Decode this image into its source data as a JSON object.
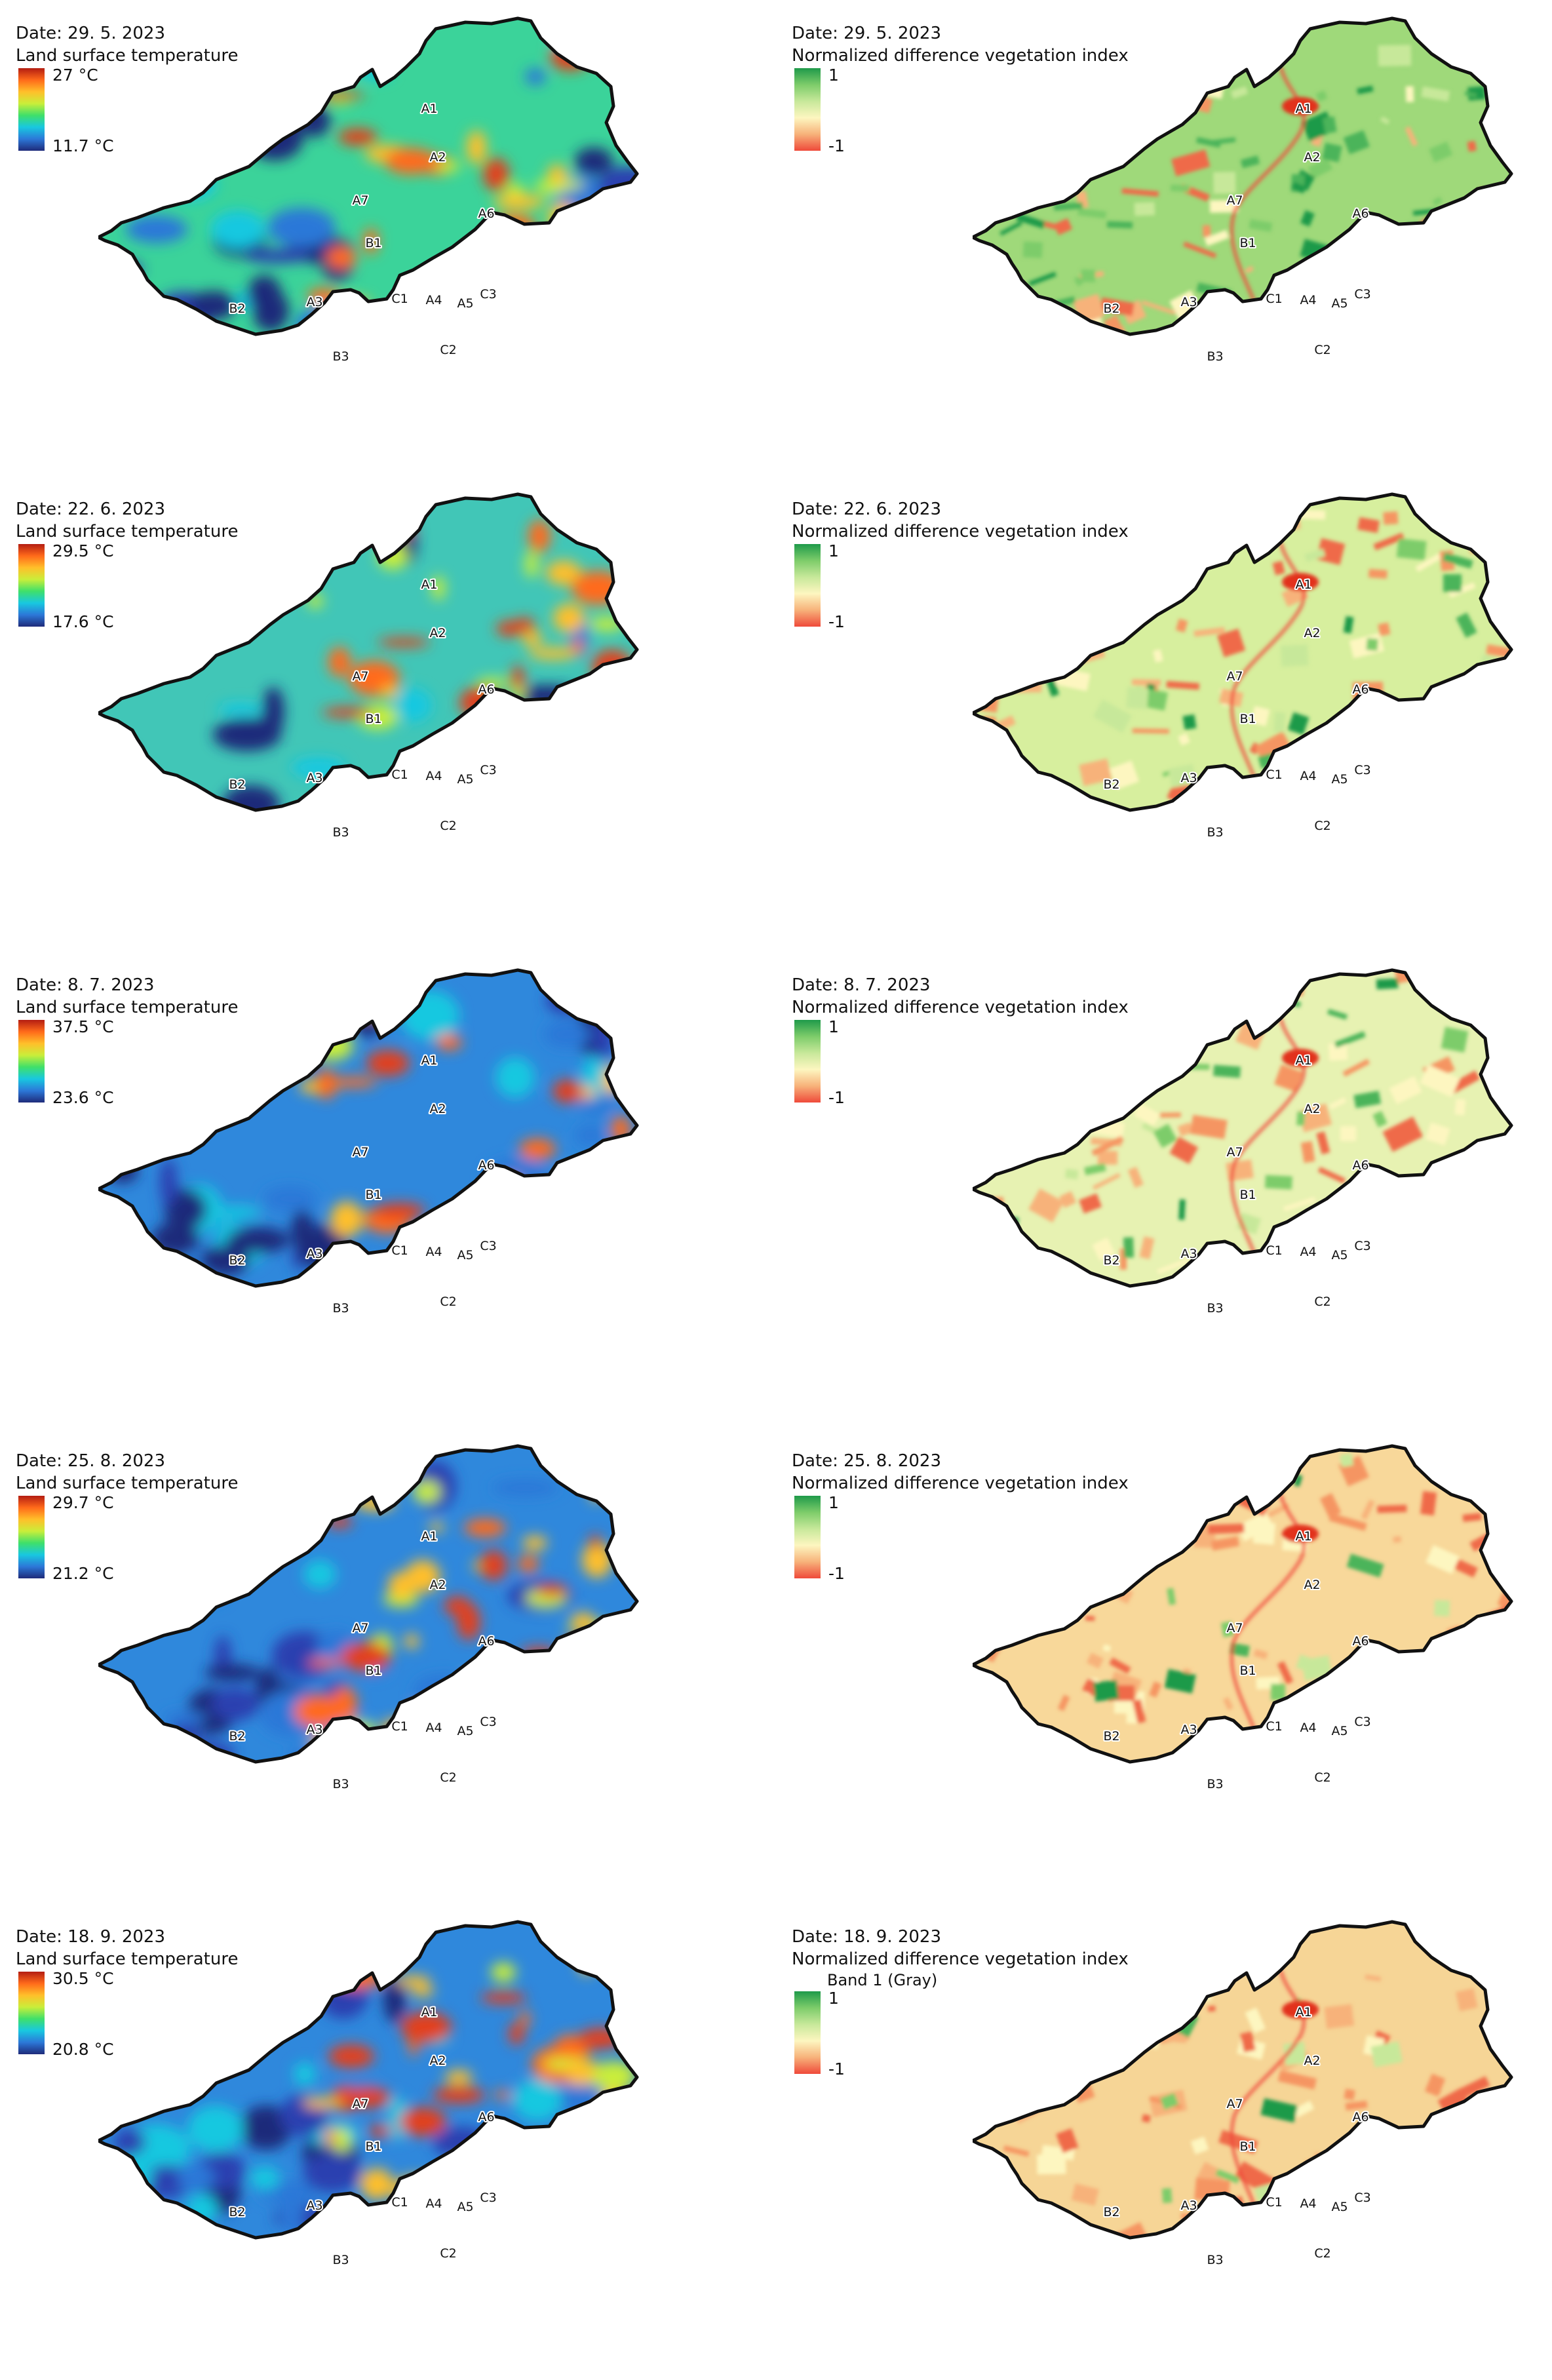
{
  "site_labels": [
    "A1",
    "A2",
    "A7",
    "A6",
    "B1",
    "C1",
    "A4",
    "A5",
    "C3",
    "B2",
    "A3",
    "B3",
    "C2"
  ],
  "palettes": {
    "lst": [
      "#1f2b7a",
      "#2c78d8",
      "#18c8e0",
      "#3fe06a",
      "#c9ee3a",
      "#ffbf2a",
      "#ff6a1a",
      "#b41d12"
    ],
    "ndvi": [
      "#ef4a3a",
      "#f7b27a",
      "#fdf6c0",
      "#c7e89a",
      "#7dcc6a",
      "#1f9a4a"
    ]
  },
  "panels": [
    {
      "id": "lst-2023-05-29",
      "row": 0,
      "col": 0,
      "kind": "lst",
      "date": "Date: 29. 5. 2023",
      "title": "Land surface temperature",
      "max_label": "27 °C",
      "min_label": "11.7 °C",
      "base": "#3bd39a",
      "hot_fraction": 0.35,
      "cold_fraction": 0.35
    },
    {
      "id": "ndvi-2023-05-29",
      "row": 0,
      "col": 1,
      "kind": "ndvi",
      "date": "Date: 29. 5. 2023",
      "title": "Normalized difference vegetation index",
      "max_label": "1",
      "min_label": "-1",
      "base": "#9fd97a",
      "dark_fraction": 0.55
    },
    {
      "id": "lst-2023-06-22",
      "row": 1,
      "col": 0,
      "kind": "lst",
      "date": "Date: 22. 6. 2023",
      "title": "Land surface temperature",
      "max_label": "29.5 °C",
      "min_label": "17.6 °C",
      "base": "#41c6b7",
      "hot_fraction": 0.45,
      "cold_fraction": 0.2
    },
    {
      "id": "ndvi-2023-06-22",
      "row": 1,
      "col": 1,
      "kind": "ndvi",
      "date": "Date: 22. 6. 2023",
      "title": "Normalized difference vegetation index",
      "max_label": "1",
      "min_label": "-1",
      "base": "#d7ef9e",
      "dark_fraction": 0.35
    },
    {
      "id": "lst-2023-07-08",
      "row": 2,
      "col": 0,
      "kind": "lst",
      "date": "Date: 8. 7. 2023",
      "title": "Land surface temperature",
      "max_label": "37.5 °C",
      "min_label": "23.6 °C",
      "base": "#2f88dc",
      "hot_fraction": 0.25,
      "cold_fraction": 0.6
    },
    {
      "id": "ndvi-2023-07-08",
      "row": 2,
      "col": 1,
      "kind": "ndvi",
      "date": "Date: 8. 7. 2023",
      "title": "Normalized difference vegetation index",
      "max_label": "1",
      "min_label": "-1",
      "base": "#e7f2b2",
      "dark_fraction": 0.3
    },
    {
      "id": "lst-2023-08-25",
      "row": 3,
      "col": 0,
      "kind": "lst",
      "date": "Date: 25. 8. 2023",
      "title": "Land surface temperature",
      "max_label": "29.7 °C",
      "min_label": "21.2 °C",
      "base": "#2f88dc",
      "hot_fraction": 0.55,
      "cold_fraction": 0.5
    },
    {
      "id": "ndvi-2023-08-25",
      "row": 3,
      "col": 1,
      "kind": "ndvi",
      "date": "Date: 25. 8. 2023",
      "title": "Normalized difference vegetation index",
      "max_label": "1",
      "min_label": "-1",
      "base": "#f8d89a",
      "dark_fraction": 0.15
    },
    {
      "id": "lst-2023-09-18",
      "row": 4,
      "col": 0,
      "kind": "lst",
      "date": "Date: 18. 9. 2023",
      "title": "Land surface temperature",
      "max_label": "30.5 °C",
      "min_label": "20.8 °C",
      "base": "#2f88dc",
      "hot_fraction": 0.55,
      "cold_fraction": 0.5
    },
    {
      "id": "ndvi-2023-09-18",
      "row": 4,
      "col": 1,
      "kind": "ndvi",
      "date": "Date: 18. 9. 2023",
      "title": "Normalized difference vegetation index",
      "band": "Band 1 (Gray)",
      "max_label": "1",
      "min_label": "-1",
      "base": "#f6d596",
      "dark_fraction": 0.15
    }
  ]
}
